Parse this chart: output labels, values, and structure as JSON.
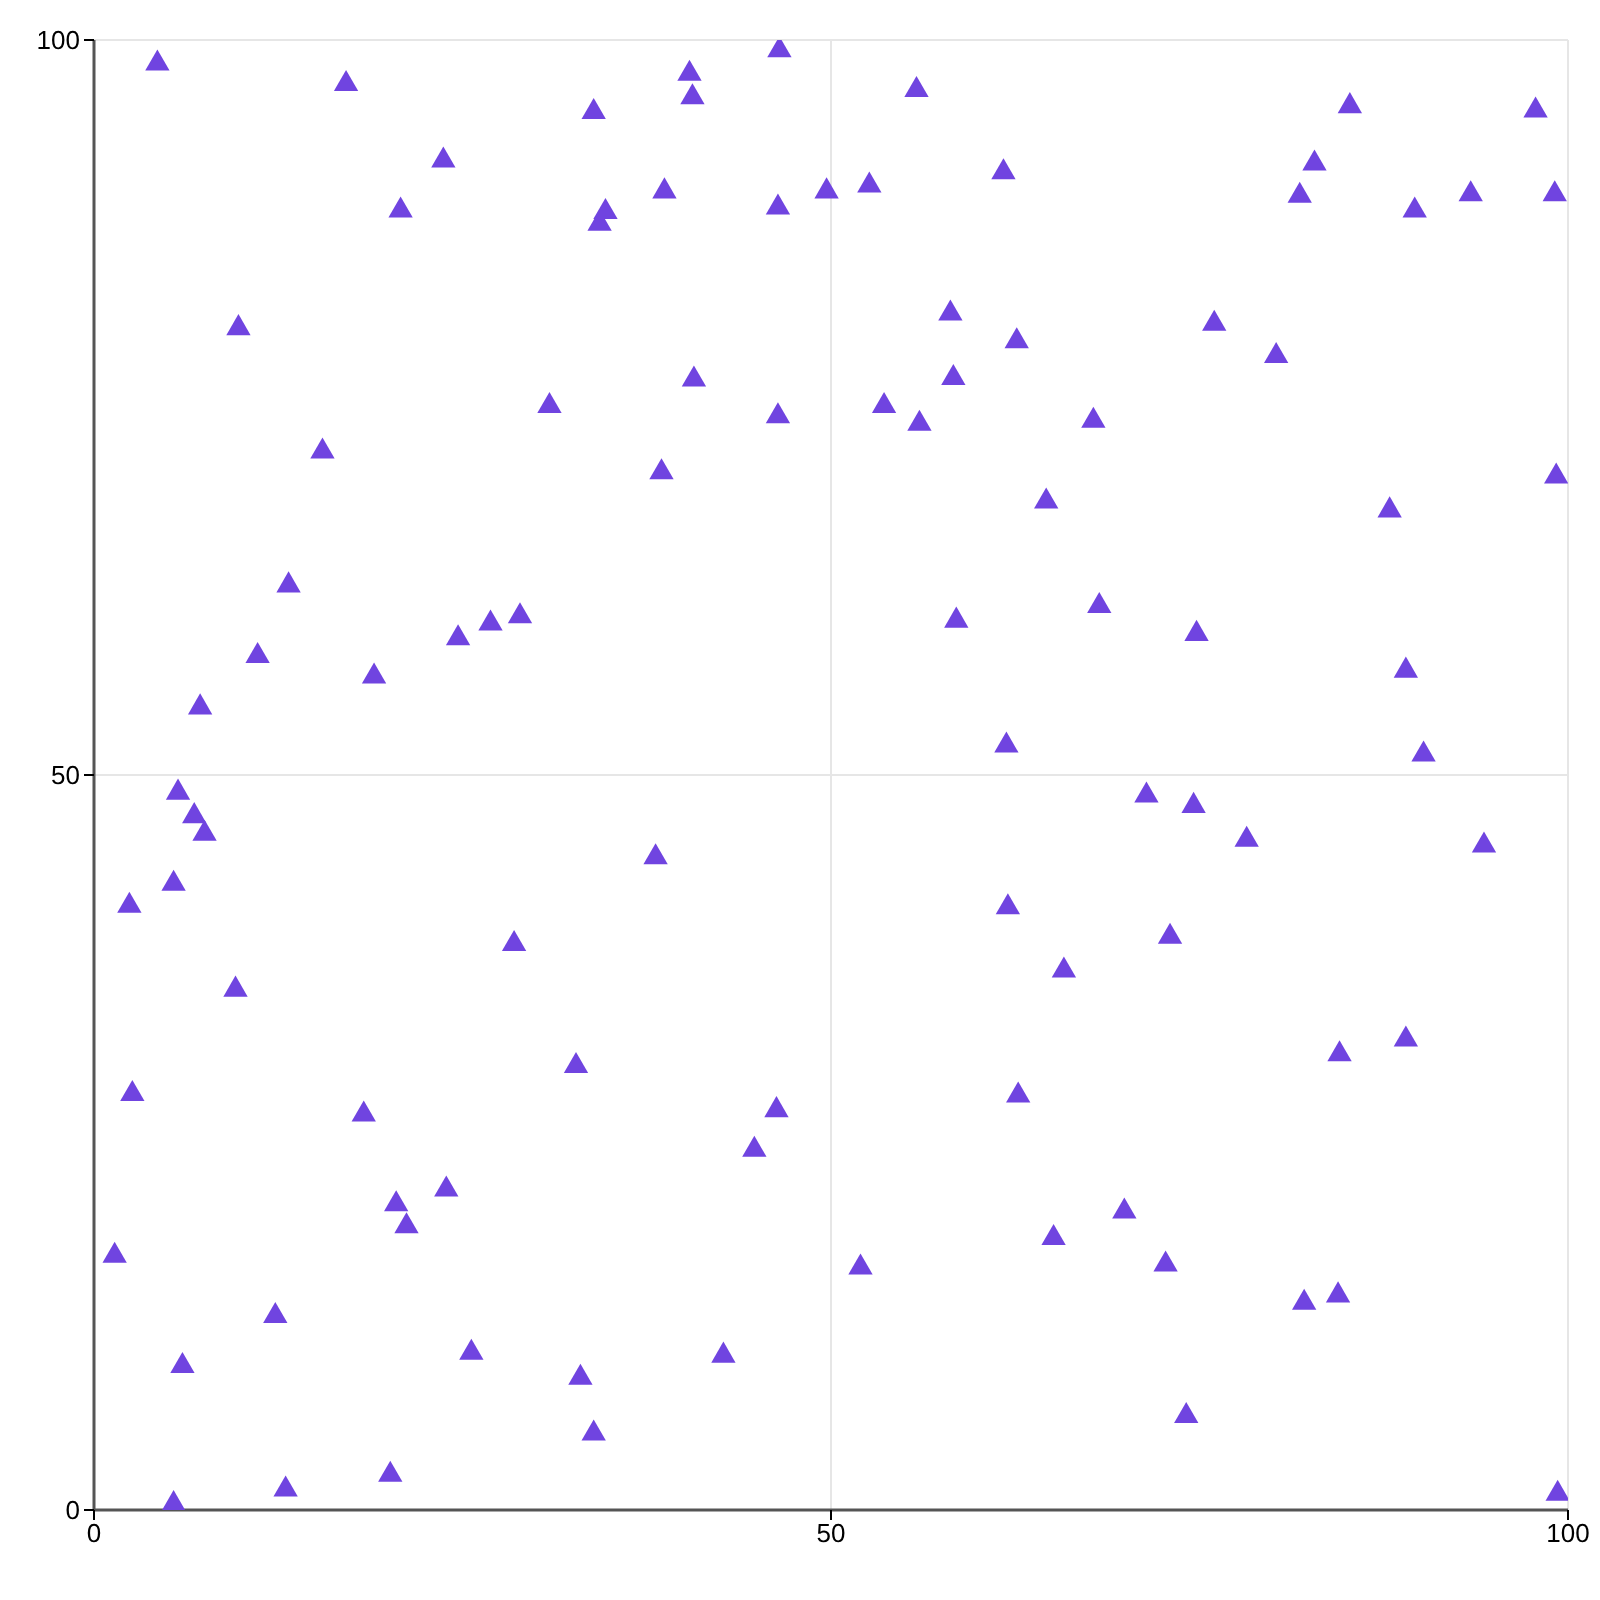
{
  "chart_data": {
    "type": "scatter",
    "color": "#7044e0",
    "marker": "triangle",
    "xlim": [
      0,
      100
    ],
    "ylim": [
      0,
      100
    ],
    "xticks": [
      0,
      50,
      100
    ],
    "yticks": [
      0,
      50,
      100
    ],
    "grid": true,
    "x": [
      4.3,
      17.1,
      33.9,
      40.4,
      40.6,
      46.5,
      23.7,
      20.8,
      34.3,
      34.7,
      38.7,
      46.4,
      49.7,
      9.8,
      40.7,
      46.4,
      30.9,
      38.5,
      15.5,
      13.2,
      11.1,
      19.0,
      24.7,
      26.9,
      28.9,
      7.2,
      55.8,
      85.2,
      97.8,
      82.8,
      81.8,
      52.6,
      61.7,
      89.6,
      93.4,
      99.1,
      58.1,
      62.6,
      58.3,
      76.0,
      80.2,
      53.6,
      56.0,
      67.8,
      64.6,
      87.9,
      99.2,
      58.5,
      68.2,
      74.8,
      89.0,
      61.9,
      90.2,
      5.7,
      6.8,
      7.5,
      2.4,
      5.4,
      9.6,
      38.1,
      28.5,
      32.7,
      46.3,
      44.8,
      2.6,
      18.3,
      23.9,
      20.5,
      21.2,
      1.4,
      12.3,
      6.0,
      25.6,
      33.0,
      42.7,
      33.9,
      20.1,
      13.0,
      5.4,
      71.4,
      74.6,
      78.2,
      94.3,
      62.0,
      73.0,
      65.8,
      84.5,
      89.0,
      62.7,
      69.9,
      65.1,
      72.7,
      52.0,
      82.1,
      84.4,
      74.1,
      99.3
    ],
    "values": [
      98.4,
      97.0,
      95.1,
      97.7,
      96.1,
      99.3,
      91.8,
      88.4,
      87.5,
      88.3,
      89.7,
      88.6,
      89.7,
      80.4,
      76.9,
      74.4,
      75.1,
      70.6,
      72.0,
      62.9,
      58.1,
      56.7,
      59.3,
      60.3,
      60.8,
      54.6,
      96.6,
      95.5,
      95.2,
      91.6,
      89.4,
      90.1,
      91.0,
      88.4,
      89.5,
      89.5,
      81.4,
      79.5,
      77.0,
      80.7,
      78.5,
      75.1,
      73.9,
      74.1,
      68.6,
      68.0,
      70.3,
      60.5,
      61.5,
      59.6,
      57.1,
      52.0,
      51.4,
      48.8,
      47.2,
      46.0,
      41.1,
      42.6,
      35.4,
      44.4,
      38.5,
      30.2,
      27.2,
      24.5,
      28.3,
      26.9,
      21.8,
      20.8,
      19.3,
      17.3,
      13.2,
      9.8,
      10.7,
      9.0,
      10.5,
      5.2,
      2.4,
      1.4,
      0.4,
      48.6,
      47.9,
      45.6,
      45.2,
      41.0,
      39.0,
      36.7,
      31.0,
      32.0,
      28.2,
      20.3,
      18.5,
      16.7,
      16.5,
      14.1,
      14.6,
      6.4,
      1.1
    ]
  }
}
